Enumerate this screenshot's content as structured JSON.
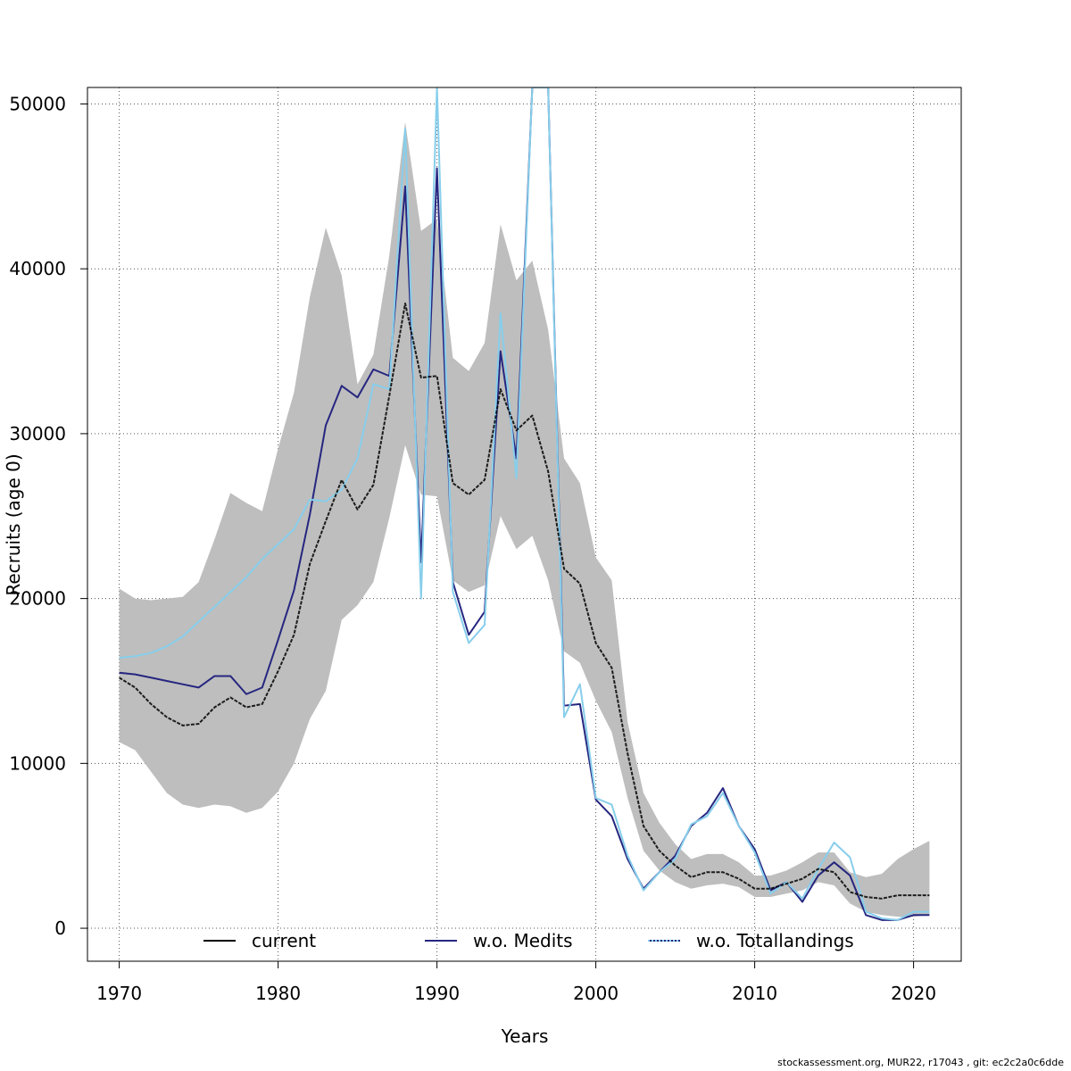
{
  "chart_data": {
    "type": "line",
    "xlabel": "Years",
    "ylabel": "Recruits (age 0)",
    "xlim": [
      1968,
      2023
    ],
    "ylim": [
      -2000,
      51000
    ],
    "xticks": [
      1970,
      1980,
      1990,
      2000,
      2010,
      2020
    ],
    "yticks": [
      0,
      10000,
      20000,
      30000,
      40000,
      50000
    ],
    "grid": true,
    "legend_position": "bottom",
    "x": [
      1970,
      1971,
      1972,
      1973,
      1974,
      1975,
      1976,
      1977,
      1978,
      1979,
      1980,
      1981,
      1982,
      1983,
      1984,
      1985,
      1986,
      1987,
      1988,
      1989,
      1990,
      1991,
      1992,
      1993,
      1994,
      1995,
      1996,
      1997,
      1998,
      1999,
      2000,
      2001,
      2002,
      2003,
      2004,
      2005,
      2006,
      2007,
      2008,
      2009,
      2010,
      2011,
      2012,
      2013,
      2014,
      2015,
      2016,
      2017,
      2018,
      2019,
      2020,
      2021
    ],
    "band": {
      "color": "#bebebe",
      "upper": [
        20600,
        20000,
        19900,
        20000,
        20100,
        21000,
        23600,
        26400,
        25800,
        25300,
        29100,
        32500,
        38300,
        42500,
        39600,
        33000,
        34800,
        40800,
        48900,
        42300,
        43000,
        34600,
        33800,
        35500,
        42700,
        39300,
        40500,
        36300,
        28500,
        27000,
        22500,
        21100,
        12500,
        8200,
        6400,
        5100,
        4200,
        4500,
        4500,
        4000,
        3200,
        3200,
        3500,
        4000,
        4600,
        4600,
        3400,
        3100,
        3300,
        4200,
        4800,
        5300
      ],
      "lower": [
        11300,
        10800,
        9500,
        8200,
        7500,
        7300,
        7500,
        7400,
        7000,
        7300,
        8300,
        10000,
        12700,
        14400,
        18700,
        19600,
        21000,
        24900,
        29300,
        26300,
        26200,
        21100,
        20400,
        20800,
        25000,
        23000,
        23800,
        21100,
        16800,
        16100,
        13800,
        11900,
        7900,
        4700,
        3500,
        2800,
        2400,
        2600,
        2700,
        2500,
        1900,
        1900,
        2100,
        2300,
        2800,
        2600,
        1500,
        1000,
        800,
        700,
        700,
        800
      ]
    },
    "series": [
      {
        "name": "current",
        "color": "#000000",
        "style": "solid",
        "values": [
          15200,
          14600,
          13600,
          12800,
          12300,
          12400,
          13400,
          14000,
          13400,
          13600,
          15600,
          17800,
          22100,
          24700,
          27200,
          25400,
          26900,
          32300,
          37900,
          33400,
          33500,
          27000,
          26300,
          27200,
          32700,
          30200,
          31100,
          27700,
          21800,
          20900,
          17300,
          15800,
          10600,
          6200,
          4700,
          3800,
          3100,
          3400,
          3400,
          3000,
          2400,
          2400,
          2700,
          3000,
          3600,
          3400,
          2200,
          1900,
          1800,
          2000,
          2000,
          2000
        ]
      },
      {
        "name": "w.o. Medits",
        "color": "#262680",
        "style": "solid",
        "values": [
          15500,
          15400,
          15200,
          15000,
          14800,
          14600,
          15300,
          15300,
          14200,
          14600,
          17500,
          20500,
          25100,
          30500,
          32900,
          32200,
          33900,
          33500,
          45000,
          22200,
          46100,
          21000,
          17800,
          19200,
          35000,
          28500,
          51000,
          51000,
          13500,
          13600,
          7800,
          6800,
          4200,
          2400,
          3400,
          4400,
          6200,
          7000,
          8500,
          6200,
          4800,
          2300,
          2800,
          1600,
          3200,
          4000,
          3200,
          800,
          500,
          500,
          800,
          800
        ]
      },
      {
        "name": "w.o. Totallandings",
        "color": "#87ceeb",
        "style": "dotted",
        "values": [
          16400,
          16500,
          16700,
          17100,
          17700,
          18600,
          19500,
          20400,
          21300,
          22400,
          23300,
          24200,
          26000,
          25900,
          26600,
          28500,
          33000,
          32700,
          48500,
          20000,
          51000,
          20400,
          17300,
          18400,
          37300,
          27300,
          51000,
          51000,
          12800,
          14800,
          7900,
          7500,
          4400,
          2300,
          3400,
          4200,
          6300,
          6800,
          8200,
          6200,
          4600,
          2100,
          2800,
          1800,
          3600,
          5200,
          4300,
          1000,
          600,
          500,
          1000,
          1000
        ]
      }
    ]
  },
  "footer_text": "stockassessment.org, MUR22, r17043 , git: ec2c2a0c6dde"
}
